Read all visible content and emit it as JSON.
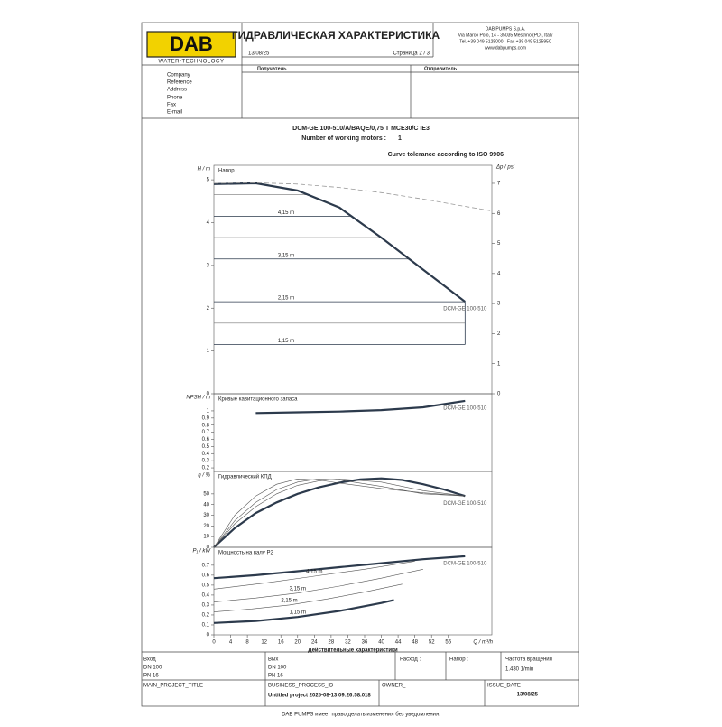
{
  "header": {
    "logo": "DAB",
    "logo_sub": "WATER•TECHNOLOGY",
    "title": "ГИДРАВЛИЧЕСКАЯ ХАРАКТЕРИСТИКА",
    "date": "13/08/25",
    "page": "Страница 2 / 3",
    "company": [
      "DAB PUMPS S.p.A.",
      "Via Marco Polo, 14 - 35035 Mestrino (PD), Italy",
      "Tel. +39 049 5125000 - Fax +39 049 5125950",
      "www.dabpumps.com"
    ]
  },
  "contacts": {
    "recipient": "Получатель",
    "sender": "Отправитель",
    "fields": [
      "Company",
      "Reference",
      "Address",
      "Phone",
      "Fax",
      "E-mail"
    ]
  },
  "product": {
    "model": "DCM-GE 100-510/A/BAQE/0,75 T MCE30/C IE3",
    "motors_label": "Number of working motors :",
    "motors_value": 1,
    "tolerance": "Curve tolerance according to ISO 9906"
  },
  "chart_data": [
    {
      "type": "line",
      "title": "Напор",
      "ylabel": "H / m",
      "y2label": "Δp / psi",
      "xlim": [
        0,
        66.4
      ],
      "ylim": [
        0,
        5.34
      ],
      "yticks": [
        0,
        1,
        2,
        3,
        4,
        5
      ],
      "y2lim": [
        0,
        7.6
      ],
      "y2ticks": [
        0,
        1,
        2,
        3,
        4,
        5,
        6,
        7
      ],
      "levels": [
        {
          "label": "4,15 m",
          "value": 4.15
        },
        {
          "label": "3,15 m",
          "value": 3.15
        },
        {
          "label": "2,15 m",
          "value": 2.15
        },
        {
          "label": "1,15 m",
          "value": 1.15
        }
      ],
      "aux_levels": [
        4.65,
        3.65,
        1.65
      ],
      "series": [
        {
          "name": "DCM-GE 100-510",
          "color": "#2c3a4c",
          "line_width": 2.2,
          "x": [
            0,
            10,
            20,
            30,
            40,
            50,
            60
          ],
          "values": [
            4.9,
            4.92,
            4.75,
            4.35,
            3.65,
            2.9,
            2.15
          ]
        },
        {
          "color": "#9a9a9a",
          "dashed": true,
          "line_width": 0.8,
          "x": [
            0,
            10,
            20,
            30,
            40,
            50,
            60,
            66
          ],
          "values": [
            4.92,
            4.93,
            4.9,
            4.82,
            4.7,
            4.55,
            4.38,
            4.28
          ]
        }
      ]
    },
    {
      "type": "line",
      "title": "Кривые кавитационного запаса",
      "ylabel": "NPSH / m",
      "xlim": [
        0,
        66.4
      ],
      "ylim": [
        0.15,
        1.24
      ],
      "yticks": [
        0.2,
        0.3,
        0.4,
        0.5,
        0.6,
        0.7,
        0.8,
        0.9,
        1
      ],
      "series": [
        {
          "name": "DCM-GE 100-510",
          "color": "#2c3a4c",
          "line_width": 2.2,
          "x": [
            10,
            20,
            30,
            40,
            50,
            60
          ],
          "values": [
            0.97,
            0.98,
            0.99,
            1.01,
            1.05,
            1.14
          ]
        }
      ]
    },
    {
      "type": "line",
      "title": "Гидравлический КПД",
      "ylabel": "η / %",
      "xlim": [
        0,
        66.4
      ],
      "ylim": [
        0,
        71
      ],
      "yticks": [
        0,
        10,
        20,
        30,
        40,
        50
      ],
      "series": [
        {
          "name": "DCM-GE 100-510",
          "color": "#2c3a4c",
          "line_width": 2.2,
          "x": [
            0,
            5,
            10,
            15,
            20,
            25,
            30,
            35,
            40,
            45,
            50,
            55,
            60
          ],
          "values": [
            0,
            18,
            32,
            42,
            50,
            56,
            60.5,
            63.5,
            64.5,
            63,
            59,
            54,
            48
          ]
        },
        {
          "color": "#555555",
          "line_width": 0.6,
          "x": [
            0,
            5,
            10,
            15,
            20,
            25,
            30,
            40,
            50,
            60
          ],
          "values": [
            0,
            25,
            42,
            54,
            61,
            64,
            63,
            57,
            50,
            48
          ]
        },
        {
          "color": "#555555",
          "line_width": 0.6,
          "x": [
            0,
            5,
            10,
            15,
            20,
            25,
            30,
            40,
            50,
            60
          ],
          "values": [
            0,
            22,
            38,
            50,
            58,
            62,
            64,
            61,
            53,
            48
          ]
        },
        {
          "color": "#555555",
          "line_width": 0.6,
          "x": [
            0,
            5,
            10,
            15,
            20,
            25,
            30,
            40,
            50,
            60
          ],
          "values": [
            0,
            30,
            48,
            59,
            64,
            63,
            60,
            55,
            51,
            48
          ]
        }
      ]
    },
    {
      "type": "line",
      "title": "Мощность на валу P2",
      "ylabel": "P₁ / kW",
      "xlabel": "Q / m³/h",
      "caption": "Действительные характеристики",
      "xlim": [
        0,
        66.4
      ],
      "xticks": [
        0,
        4,
        8,
        12,
        16,
        20,
        24,
        28,
        32,
        36,
        40,
        44,
        48,
        52,
        56
      ],
      "ylim": [
        0,
        0.88
      ],
      "yticks": [
        0,
        0.1,
        0.2,
        0.3,
        0.4,
        0.5,
        0.6,
        0.7
      ],
      "series": [
        {
          "name": "DCM-GE 100-510",
          "color": "#2c3a4c",
          "line_width": 2.2,
          "x": [
            0,
            10,
            20,
            30,
            40,
            50,
            60
          ],
          "values": [
            0.57,
            0.6,
            0.64,
            0.68,
            0.72,
            0.76,
            0.79
          ]
        },
        {
          "name": "4,15 m",
          "color": "#555555",
          "line_width": 0.6,
          "x": [
            0,
            12,
            24,
            36,
            48
          ],
          "values": [
            0.46,
            0.52,
            0.59,
            0.66,
            0.74
          ]
        },
        {
          "name": "3,15 m",
          "color": "#555555",
          "line_width": 0.6,
          "x": [
            0,
            10,
            20,
            30,
            40,
            50
          ],
          "values": [
            0.33,
            0.37,
            0.42,
            0.49,
            0.57,
            0.66
          ]
        },
        {
          "name": "2,15 m",
          "color": "#555555",
          "line_width": 0.6,
          "x": [
            0,
            9,
            18,
            27,
            36,
            45
          ],
          "values": [
            0.23,
            0.26,
            0.3,
            0.36,
            0.43,
            0.51
          ]
        },
        {
          "name": "1,15 m",
          "color": "#2c3a4c",
          "line_width": 2.2,
          "x": [
            0,
            10,
            20,
            30,
            40,
            43
          ],
          "values": [
            0.12,
            0.14,
            0.18,
            0.24,
            0.32,
            0.35
          ]
        }
      ]
    }
  ],
  "specs": {
    "inlet": [
      "Вход",
      "DN 100",
      "PN 16"
    ],
    "outlet": [
      "Вых",
      "DN 100",
      "PN 16"
    ],
    "flow": "Расход :",
    "head": "Напор :",
    "speed": [
      "Частота вращения",
      "1.430 1/min"
    ]
  },
  "project": {
    "title_label": "MAIN_PROJECT_TITLE",
    "process_label": "BUSINESS_PROCESS_ID",
    "process_value": "Untitled project 2025-08-13 09:26:58.018",
    "owner_label": "OWNER_",
    "issue_label": "ISSUE_DATE",
    "issue_value": "13/08/25"
  },
  "footer": "DAB PUMPS имеет право делать изменения без уведомления."
}
